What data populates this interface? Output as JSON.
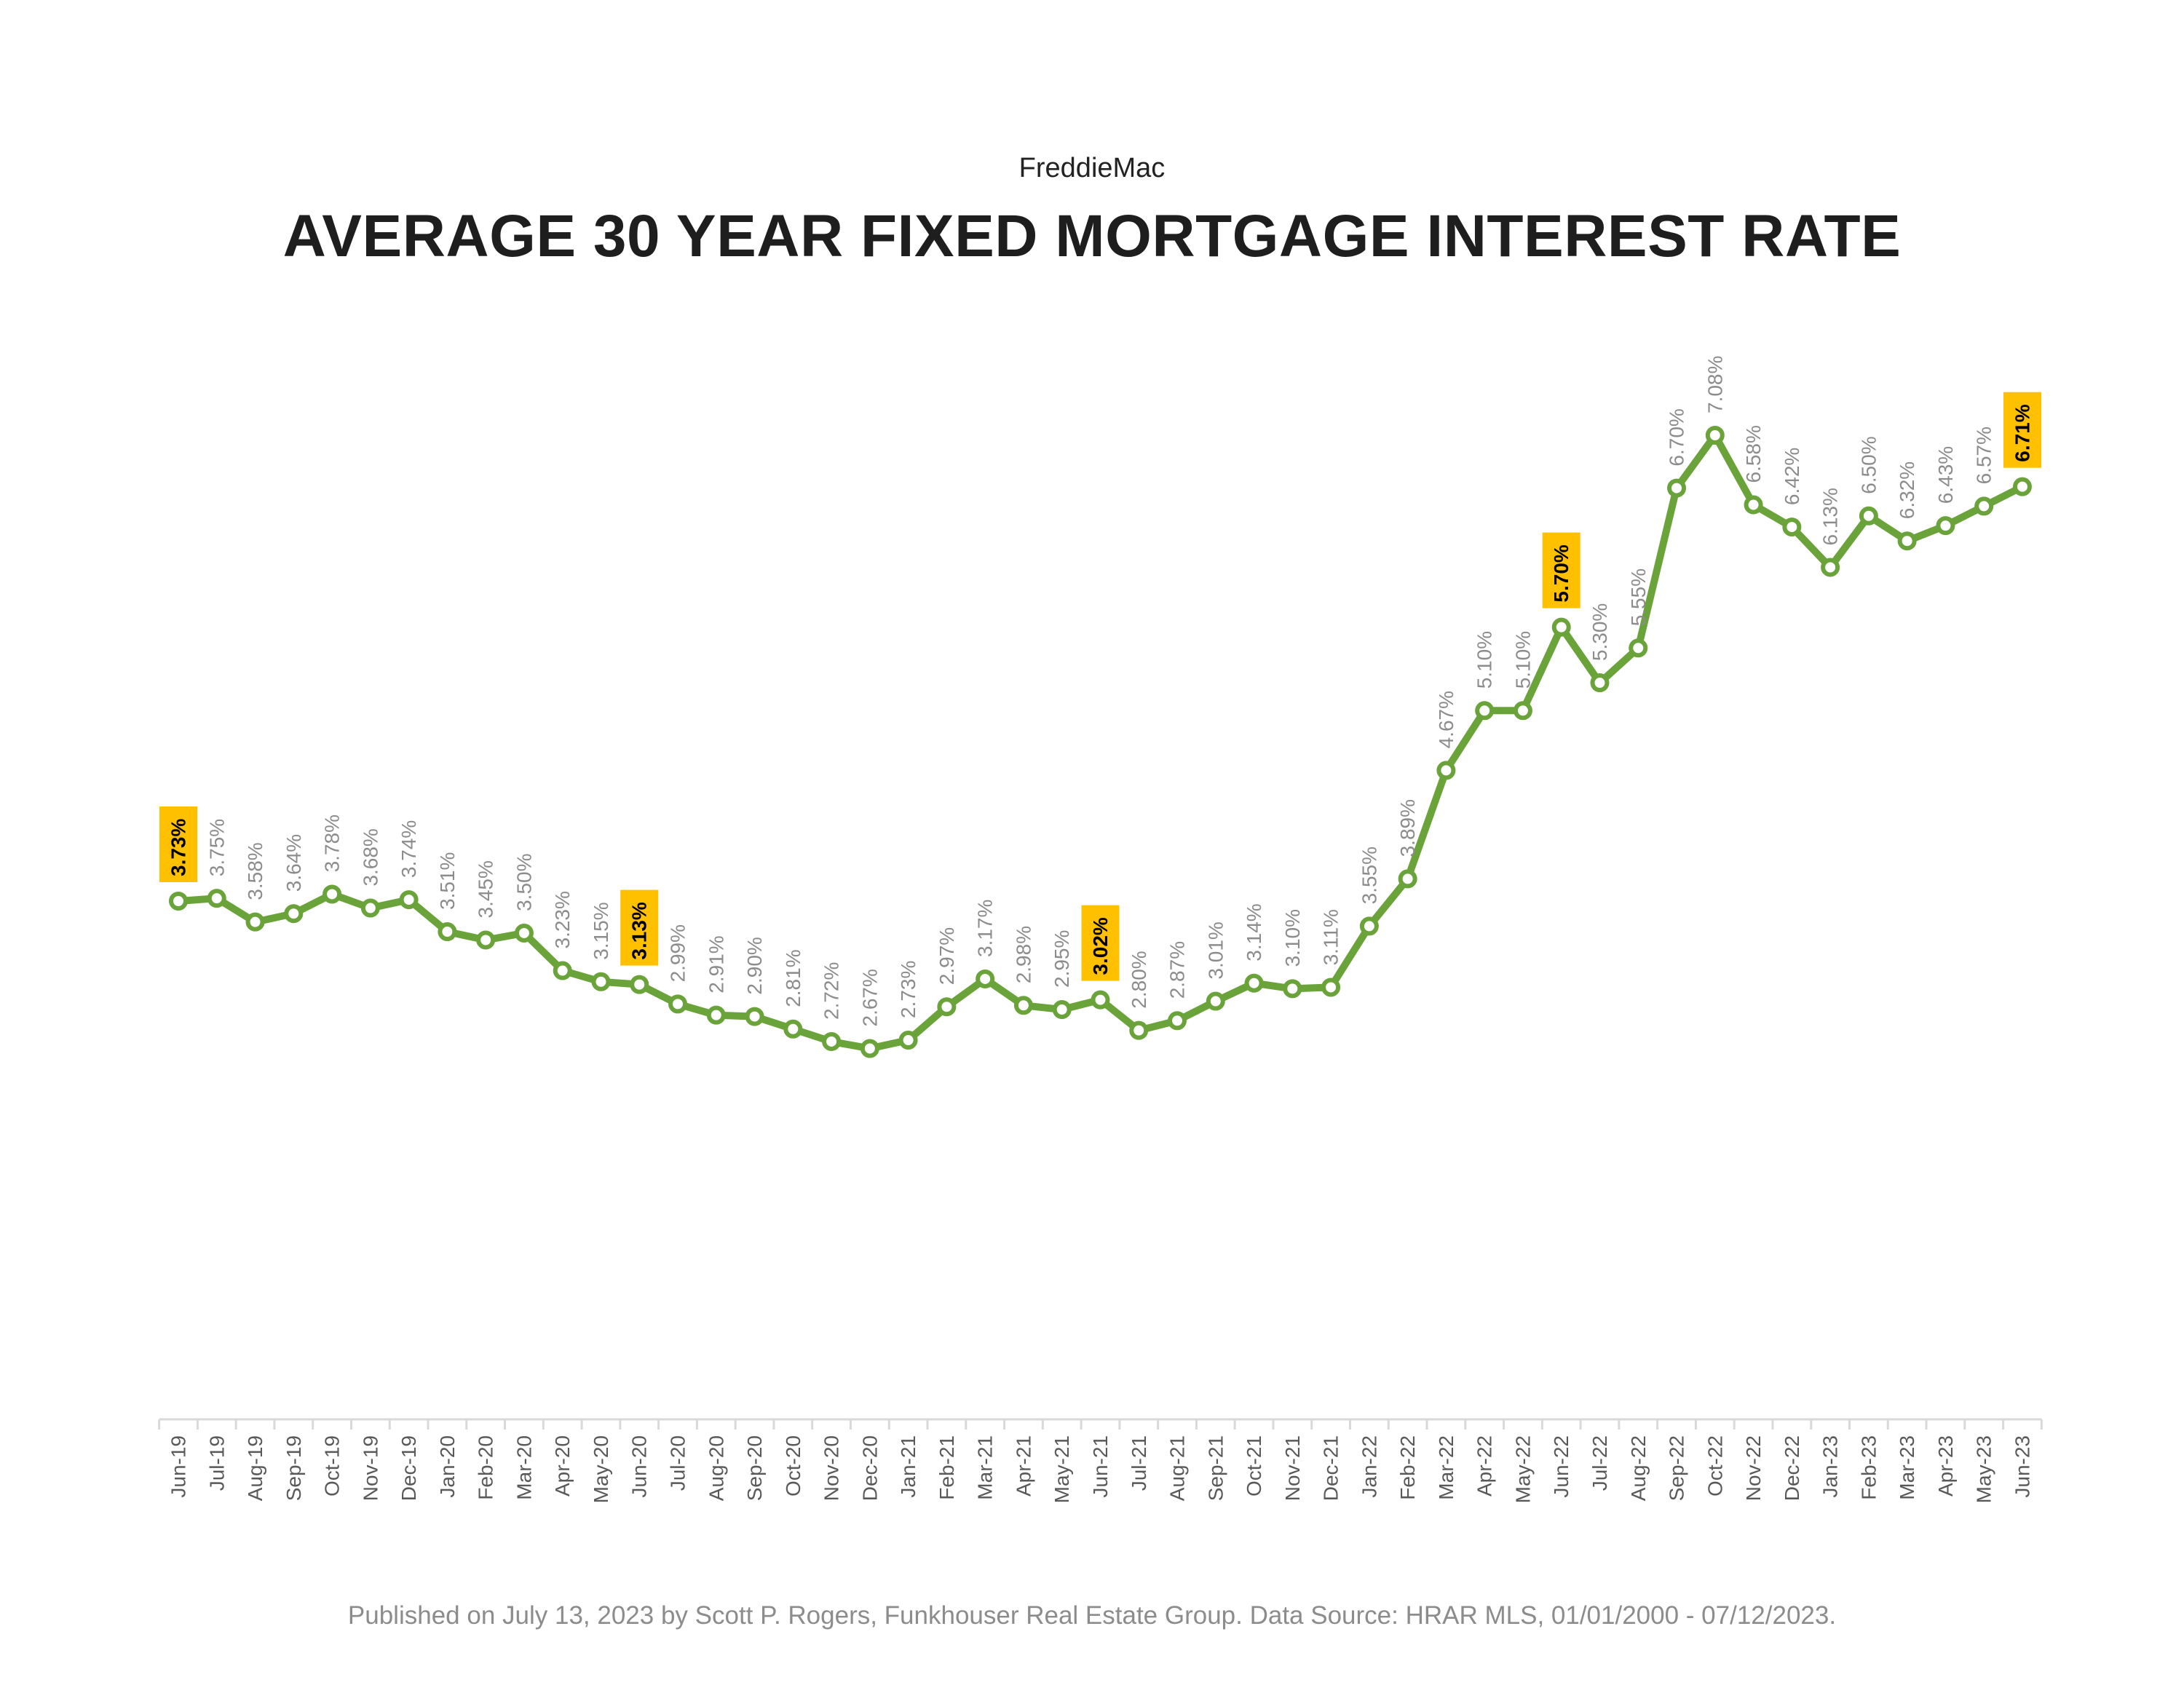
{
  "header": {
    "subtitle": "FreddieMac",
    "title": "AVERAGE 30 YEAR FIXED MORTGAGE INTEREST RATE"
  },
  "footer": {
    "text": "Published on July 13, 2023 by Scott P. Rogers, Funkhouser Real Estate Group. Data Source: HRAR MLS, 01/01/2000 - 07/12/2023."
  },
  "chart_data": {
    "type": "line",
    "title": "AVERAGE 30 YEAR FIXED MORTGAGE INTEREST RATE",
    "subtitle": "FreddieMac",
    "xlabel": "",
    "ylabel": "",
    "grid": false,
    "legend": "none",
    "line_color": "#6aa33a",
    "highlight_color": "#ffc000",
    "categories": [
      "Jun-19",
      "Jul-19",
      "Aug-19",
      "Sep-19",
      "Oct-19",
      "Nov-19",
      "Dec-19",
      "Jan-20",
      "Feb-20",
      "Mar-20",
      "Apr-20",
      "May-20",
      "Jun-20",
      "Jul-20",
      "Aug-20",
      "Sep-20",
      "Oct-20",
      "Nov-20",
      "Dec-20",
      "Jan-21",
      "Feb-21",
      "Mar-21",
      "Apr-21",
      "May-21",
      "Jun-21",
      "Jul-21",
      "Aug-21",
      "Sep-21",
      "Oct-21",
      "Nov-21",
      "Dec-21",
      "Jan-22",
      "Feb-22",
      "Mar-22",
      "Apr-22",
      "May-22",
      "Jun-22",
      "Jul-22",
      "Aug-22",
      "Sep-22",
      "Oct-22",
      "Nov-22",
      "Dec-22",
      "Jan-23",
      "Feb-23",
      "Mar-23",
      "Apr-23",
      "May-23",
      "Jun-23"
    ],
    "values": [
      3.73,
      3.75,
      3.58,
      3.64,
      3.78,
      3.68,
      3.74,
      3.51,
      3.45,
      3.5,
      3.23,
      3.15,
      3.13,
      2.99,
      2.91,
      2.9,
      2.81,
      2.72,
      2.67,
      2.73,
      2.97,
      3.17,
      2.98,
      2.95,
      3.02,
      2.8,
      2.87,
      3.01,
      3.14,
      3.1,
      3.11,
      3.55,
      3.89,
      4.67,
      5.1,
      5.1,
      5.7,
      5.3,
      5.55,
      6.7,
      7.08,
      6.58,
      6.42,
      6.13,
      6.5,
      6.32,
      6.43,
      6.57,
      6.71
    ],
    "labels": [
      "3.73%",
      "3.75%",
      "3.58%",
      "3.64%",
      "3.78%",
      "3.68%",
      "3.74%",
      "3.51%",
      "3.45%",
      "3.50%",
      "3.23%",
      "3.15%",
      "3.13%",
      "2.99%",
      "2.91%",
      "2.90%",
      "2.81%",
      "2.72%",
      "2.67%",
      "2.73%",
      "2.97%",
      "3.17%",
      "2.98%",
      "2.95%",
      "3.02%",
      "2.80%",
      "2.87%",
      "3.01%",
      "3.14%",
      "3.10%",
      "3.11%",
      "3.55%",
      "3.89%",
      "4.67%",
      "5.10%",
      "5.10%",
      "5.70%",
      "5.30%",
      "5.55%",
      "6.70%",
      "7.08%",
      "6.58%",
      "6.42%",
      "6.13%",
      "6.50%",
      "6.32%",
      "6.43%",
      "6.57%",
      "6.71%"
    ],
    "highlighted": [
      "Jun-19",
      "Jun-20",
      "Jun-21",
      "Jun-22",
      "Jun-23"
    ]
  }
}
